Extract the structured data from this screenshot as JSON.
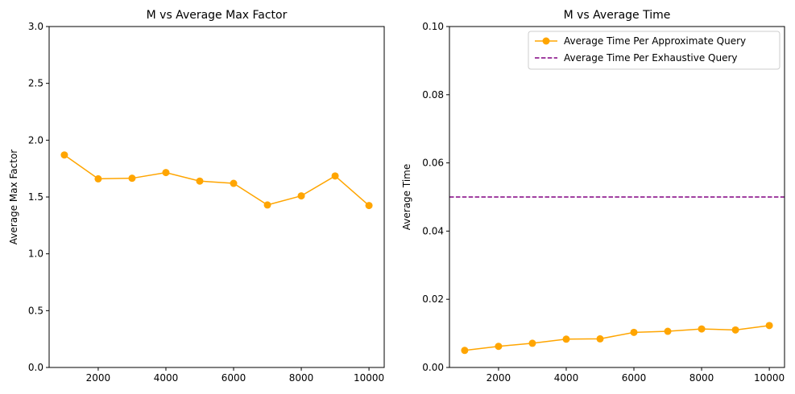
{
  "chart_data": [
    {
      "type": "line",
      "title": "M vs Average Max Factor",
      "xlabel": "",
      "ylabel": "Average Max Factor",
      "xlim": [
        550,
        10450
      ],
      "ylim": [
        0,
        3
      ],
      "xticks": [
        2000,
        4000,
        6000,
        8000,
        10000
      ],
      "yticks": [
        0.0,
        0.5,
        1.0,
        1.5,
        2.0,
        2.5,
        3.0
      ],
      "ytick_labels": [
        "0.0",
        "0.5",
        "1.0",
        "1.5",
        "2.0",
        "2.5",
        "3.0"
      ],
      "grid": false,
      "series": [
        {
          "color": "#ffa500",
          "marker": "circle",
          "x": [
            1000,
            2000,
            3000,
            4000,
            5000,
            6000,
            7000,
            8000,
            9000,
            10000
          ],
          "y": [
            1.87,
            1.66,
            1.665,
            1.715,
            1.64,
            1.62,
            1.43,
            1.51,
            1.685,
            1.425
          ]
        }
      ]
    },
    {
      "type": "line",
      "title": "M vs Average Time",
      "xlabel": "",
      "ylabel": "Average Time",
      "xlim": [
        550,
        10450
      ],
      "ylim": [
        0,
        0.1
      ],
      "xticks": [
        2000,
        4000,
        6000,
        8000,
        10000
      ],
      "yticks": [
        0.0,
        0.02,
        0.04,
        0.06,
        0.08,
        0.1
      ],
      "ytick_labels": [
        "0.00",
        "0.02",
        "0.04",
        "0.06",
        "0.08",
        "0.10"
      ],
      "grid": false,
      "legend_position": "top-right",
      "series": [
        {
          "name": "Average Time Per Approximate Query",
          "color": "#ffa500",
          "marker": "circle",
          "x": [
            1000,
            2000,
            3000,
            4000,
            5000,
            6000,
            7000,
            8000,
            9000,
            10000
          ],
          "y": [
            0.005,
            0.0062,
            0.0071,
            0.0083,
            0.0084,
            0.0103,
            0.0106,
            0.0113,
            0.011,
            0.0123
          ]
        },
        {
          "name": "Average Time Per Exhaustive Query",
          "color": "#800080",
          "style": "dashed",
          "hline": 0.05
        }
      ]
    }
  ]
}
